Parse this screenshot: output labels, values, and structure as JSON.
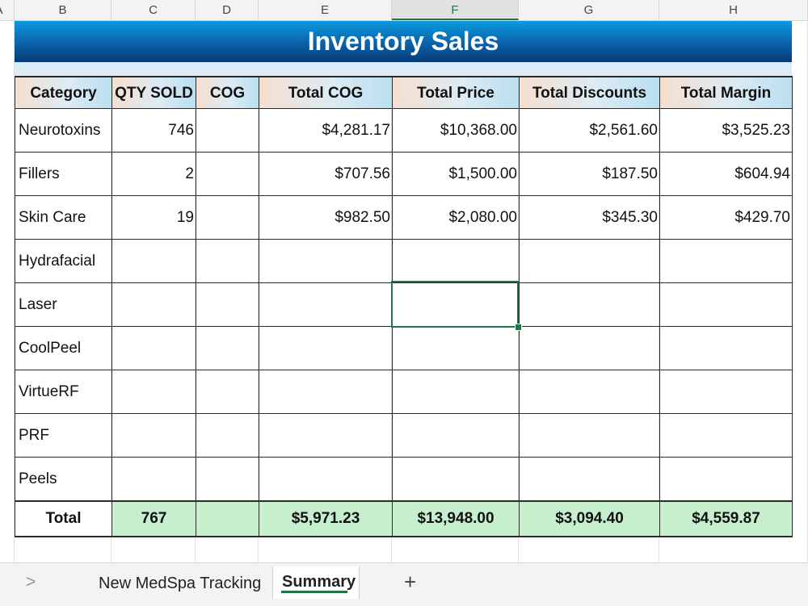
{
  "columns": [
    "A",
    "B",
    "C",
    "D",
    "E",
    "F",
    "G",
    "H"
  ],
  "selected_column": "F",
  "title": "Inventory Sales",
  "headers": [
    "Category",
    "QTY SOLD",
    "COG",
    "Total COG",
    "Total Price",
    "Total Discounts",
    "Total Margin"
  ],
  "rows": [
    {
      "category": "Neurotoxins",
      "qty": "746",
      "cog": "",
      "total_cog": "$4,281.17",
      "total_price": "$10,368.00",
      "total_discounts": "$2,561.60",
      "total_margin": "$3,525.23"
    },
    {
      "category": "Fillers",
      "qty": "2",
      "cog": "",
      "total_cog": "$707.56",
      "total_price": "$1,500.00",
      "total_discounts": "$187.50",
      "total_margin": "$604.94"
    },
    {
      "category": "Skin Care",
      "qty": "19",
      "cog": "",
      "total_cog": "$982.50",
      "total_price": "$2,080.00",
      "total_discounts": "$345.30",
      "total_margin": "$429.70"
    },
    {
      "category": "Hydrafacial",
      "qty": "",
      "cog": "",
      "total_cog": "",
      "total_price": "",
      "total_discounts": "",
      "total_margin": ""
    },
    {
      "category": "Laser",
      "qty": "",
      "cog": "",
      "total_cog": "",
      "total_price": "",
      "total_discounts": "",
      "total_margin": ""
    },
    {
      "category": "CoolPeel",
      "qty": "",
      "cog": "",
      "total_cog": "",
      "total_price": "",
      "total_discounts": "",
      "total_margin": ""
    },
    {
      "category": "VirtueRF",
      "qty": "",
      "cog": "",
      "total_cog": "",
      "total_price": "",
      "total_discounts": "",
      "total_margin": ""
    },
    {
      "category": "PRF",
      "qty": "",
      "cog": "",
      "total_cog": "",
      "total_price": "",
      "total_discounts": "",
      "total_margin": ""
    },
    {
      "category": "Peels",
      "qty": "",
      "cog": "",
      "total_cog": "",
      "total_price": "",
      "total_discounts": "",
      "total_margin": ""
    }
  ],
  "totals": {
    "label": "Total",
    "qty": "767",
    "cog": "",
    "total_cog": "$5,971.23",
    "total_price": "$13,948.00",
    "total_discounts": "$3,094.40",
    "total_margin": "$4,559.87"
  },
  "tabs": {
    "scroll_prev_icon": "chevron-right-icon",
    "scroll_prev_glyph": ">",
    "sheet1": "New MedSpa Tracking",
    "sheet2": "Summary",
    "add_icon": "plus-icon",
    "add_glyph": "+"
  },
  "colors": {
    "title_blue": "#0a62a8",
    "total_green": "#c6efce",
    "selection": "#217346"
  }
}
